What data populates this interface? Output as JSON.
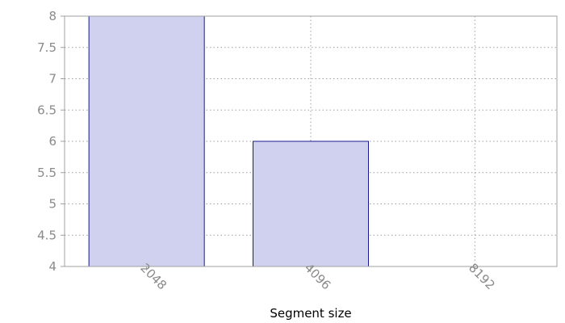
{
  "chart_data": {
    "type": "bar",
    "categories": [
      "2048",
      "4096",
      "8192"
    ],
    "values": [
      8,
      6,
      4
    ],
    "title": "",
    "xlabel": "Segment size",
    "ylabel": "",
    "ylim": [
      4,
      8
    ],
    "yticks": [
      "4",
      "4.5",
      "5",
      "5.5",
      "6",
      "6.5",
      "7",
      "7.5",
      "8"
    ],
    "grid": true,
    "legend": "none",
    "colors": {
      "bar_fill": "#d0d1ee",
      "bar_stroke": "#1a1a8c",
      "grid": "#a0a0a0",
      "axis": "#a0a0a0",
      "tick_text": "#8a8a8a"
    }
  }
}
